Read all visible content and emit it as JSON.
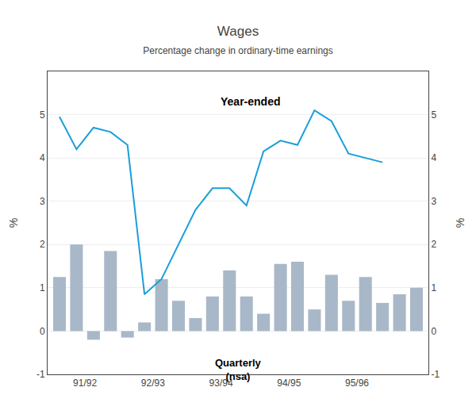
{
  "chart_data": {
    "type": "bar",
    "title": "Wages",
    "subtitle": "Percentage change in ordinary-time earnings",
    "ylabel": "%",
    "y2label": "%",
    "categories": [
      null,
      "91/92",
      null,
      null,
      null,
      "92/93",
      null,
      null,
      null,
      "93/94",
      null,
      null,
      null,
      "94/95",
      null,
      null,
      null,
      "95/96",
      null,
      null,
      null,
      null
    ],
    "series": [
      {
        "type": "bar",
        "color": "#a8b8c8",
        "values": [
          1.25,
          2.0,
          -0.2,
          1.85,
          -0.15,
          0.2,
          1.2,
          0.7,
          0.3,
          0.8,
          1.4,
          0.8,
          0.4,
          1.55,
          1.6,
          0.5,
          1.3,
          0.7,
          1.25,
          0.65,
          0.85,
          1.0
        ]
      },
      {
        "type": "line",
        "color": "#1a9fda",
        "values": [
          4.95,
          4.2,
          4.7,
          4.6,
          4.3,
          0.85,
          1.2,
          2.0,
          2.8,
          3.3,
          3.3,
          2.9,
          4.15,
          4.4,
          4.3,
          5.1,
          4.85,
          4.1,
          4.0,
          3.9,
          null,
          null
        ]
      }
    ],
    "ylim": [
      -1,
      6
    ],
    "yticks": [
      -1,
      0,
      1,
      2,
      3,
      4,
      5
    ],
    "y2lim": [
      -1,
      6
    ],
    "y2ticks": [
      -1,
      0,
      1,
      2,
      3,
      4,
      5
    ],
    "annotations": [
      "Year-ended",
      "Quarterly\n(nsa)"
    ],
    "grid": true
  }
}
